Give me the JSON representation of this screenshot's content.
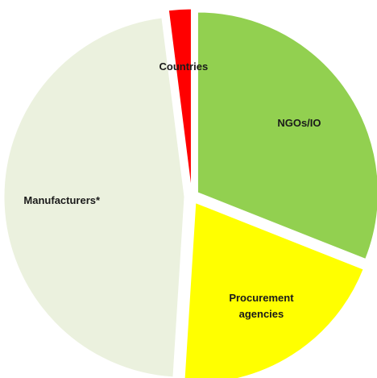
{
  "chart_data": {
    "type": "pie",
    "categories": [
      "NGOs/IO",
      "Procurement agencies",
      "Manufacturers*",
      "Countries"
    ],
    "values": [
      31,
      20,
      47,
      2
    ],
    "colors": [
      "#92d050",
      "#ffff00",
      "#ebf1de",
      "#ff0000"
    ]
  }
}
